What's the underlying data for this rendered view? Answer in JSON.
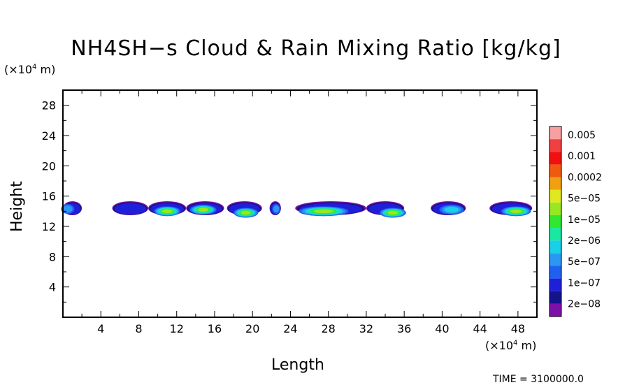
{
  "chart_data": {
    "type": "heatmap",
    "title": "NH4SH−s Cloud & Rain Mixing Ratio [kg/kg]",
    "xlabel": "Length",
    "ylabel": "Height",
    "x_unit": "(×10",
    "x_unit_exp": "4",
    "x_unit_suffix": " m)",
    "y_unit": "(×10",
    "y_unit_exp": "4",
    "y_unit_suffix": " m)",
    "xlim": [
      0,
      50
    ],
    "ylim": [
      0,
      30
    ],
    "x_ticks": [
      "4",
      "8",
      "12",
      "16",
      "20",
      "24",
      "28",
      "32",
      "36",
      "40",
      "44",
      "48"
    ],
    "y_ticks": [
      "4",
      "8",
      "12",
      "16",
      "20",
      "24",
      "28"
    ],
    "time_text": "TIME = 3100000.0",
    "colorbar": {
      "labels": [
        "0.005",
        "0.001",
        "0.0002",
        "5e−05",
        "1e−05",
        "2e−06",
        "5e−07",
        "1e−07",
        "2e−08"
      ],
      "colors": [
        "#7e0fa8",
        "#13138a",
        "#1f1fd8",
        "#2060f0",
        "#2a98f0",
        "#18d0e8",
        "#18e8a0",
        "#30e830",
        "#98e820",
        "#e0e820",
        "#f0a010",
        "#f05a10",
        "#f01010",
        "#f04040",
        "#f8a0a0"
      ]
    },
    "cloud_clusters": [
      {
        "x_start": 0.0,
        "x_end": 2.0,
        "core": [
          {
            "x": 0.5,
            "y": 14.3,
            "level": 4
          }
        ]
      },
      {
        "x_start": 5.2,
        "x_end": 9.0,
        "core": [
          {
            "x": 7.8,
            "y": 14.2,
            "level": 2
          }
        ]
      },
      {
        "x_start": 9.0,
        "x_end": 13.0,
        "core": [
          {
            "x": 11.0,
            "y": 14.0,
            "level": 8
          }
        ]
      },
      {
        "x_start": 13.0,
        "x_end": 17.0,
        "core": [
          {
            "x": 14.8,
            "y": 14.2,
            "level": 8
          }
        ]
      },
      {
        "x_start": 17.3,
        "x_end": 21.0,
        "core": [
          {
            "x": 19.3,
            "y": 13.8,
            "level": 8
          }
        ]
      },
      {
        "x_start": 21.8,
        "x_end": 23.0,
        "core": [
          {
            "x": 22.5,
            "y": 14.3,
            "level": 4
          }
        ]
      },
      {
        "x_start": 24.5,
        "x_end": 32.0,
        "core": [
          {
            "x": 27.5,
            "y": 14.0,
            "level": 8
          }
        ]
      },
      {
        "x_start": 32.0,
        "x_end": 36.0,
        "core": [
          {
            "x": 34.8,
            "y": 13.8,
            "level": 8
          }
        ]
      },
      {
        "x_start": 38.8,
        "x_end": 42.5,
        "core": [
          {
            "x": 41.0,
            "y": 14.2,
            "level": 5
          }
        ]
      },
      {
        "x_start": 45.0,
        "x_end": 49.5,
        "core": [
          {
            "x": 47.8,
            "y": 14.0,
            "level": 8
          }
        ]
      }
    ]
  }
}
